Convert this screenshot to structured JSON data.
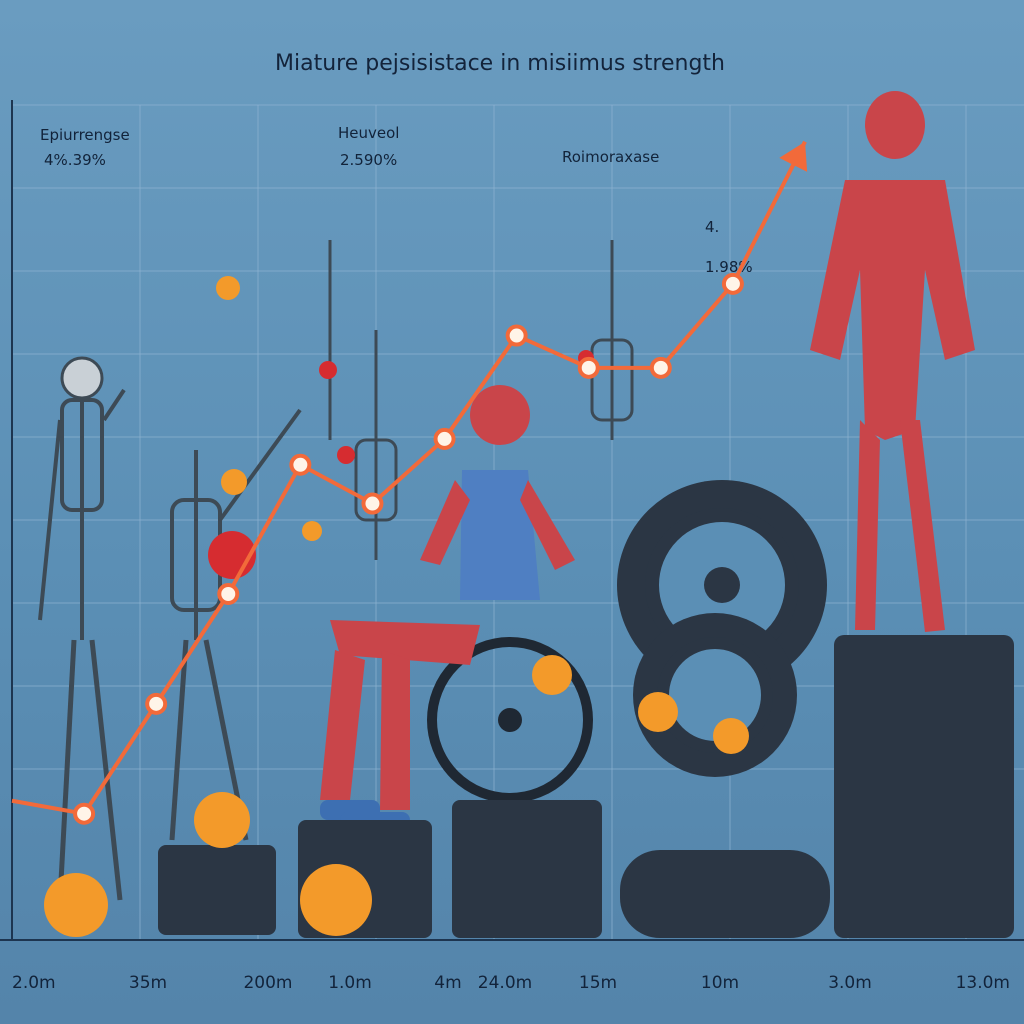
{
  "chart_data": {
    "type": "line",
    "title": "Miature pejsisistace in misiimus strength",
    "x_tick_labels": [
      "2.0m",
      "35m",
      "200m",
      "1.0m",
      "4m",
      "24.0m",
      "15m",
      "10m",
      "3.0m",
      "13.0m"
    ],
    "series": [
      {
        "values": [
          0.2,
          0.18,
          0.35,
          0.52,
          0.72,
          0.66,
          0.76,
          0.92,
          0.87,
          0.87,
          1.0,
          1.22
        ]
      }
    ],
    "ylim": [
      0,
      1.3
    ],
    "grid": true,
    "annotations": [
      {
        "label": "Epiurrengse",
        "value": "4%.39%"
      },
      {
        "label": "Heuveol",
        "value": "2.590%"
      },
      {
        "label": "Roimoraxase",
        "value": ""
      },
      {
        "label": "4.",
        "value": "1.98%"
      }
    ],
    "colors": {
      "background": "#5b8fb5",
      "line": "#f26a3a",
      "grid": "#8fb4d2"
    }
  },
  "illustrations": [
    {
      "name": "skeleton-figure"
    },
    {
      "name": "skeleton-figure"
    },
    {
      "name": "hanging-skeleton"
    },
    {
      "name": "wheelchair-athlete"
    },
    {
      "name": "hanging-skeleton"
    },
    {
      "name": "gear-stack"
    },
    {
      "name": "muscular-figure"
    }
  ]
}
